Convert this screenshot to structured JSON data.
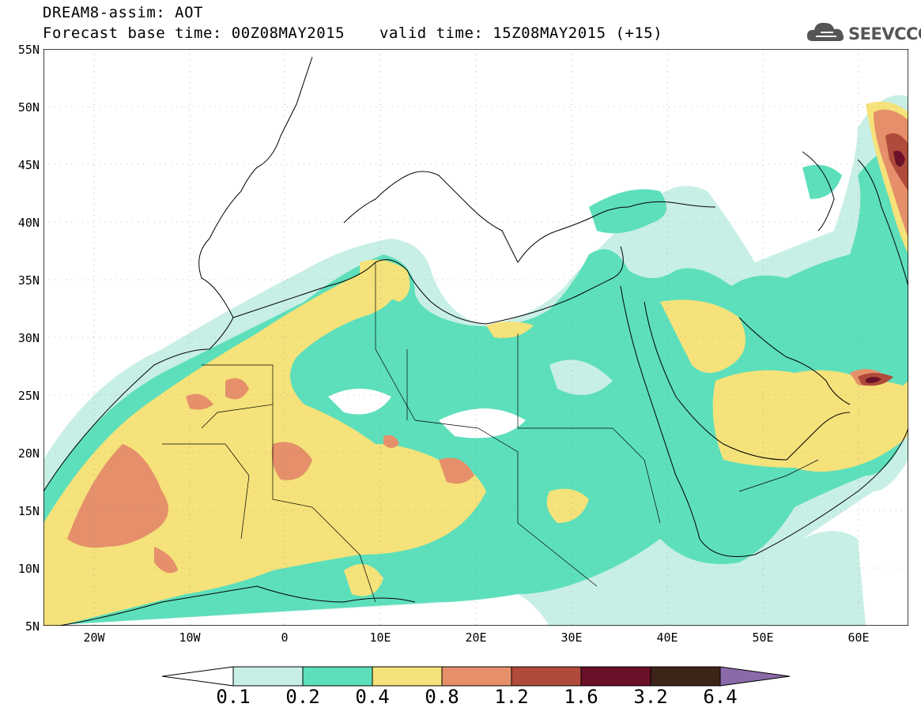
{
  "header": {
    "title": "DREAM8-assim: AOT",
    "base_time": "Forecast base time: 00Z08MAY2015",
    "valid_time": "valid time: 15Z08MAY2015 (+15)",
    "logo_text": "SEEVCCC"
  },
  "map": {
    "lat_labels": [
      "55N",
      "50N",
      "45N",
      "40N",
      "35N",
      "30N",
      "25N",
      "20N",
      "15N",
      "10N",
      "5N"
    ],
    "lon_labels": [
      "20W",
      "10W",
      "0",
      "10E",
      "20E",
      "30E",
      "40E",
      "50E",
      "60E"
    ]
  },
  "colorbar": {
    "labels": [
      "0.1",
      "0.2",
      "0.4",
      "0.8",
      "1.2",
      "1.6",
      "3.2",
      "6.4"
    ],
    "colors": [
      "#ffffff",
      "#c8efe6",
      "#5ddfbb",
      "#f5e27a",
      "#e5906a",
      "#b04a3a",
      "#6a1028",
      "#3d2418",
      "#8a6aa8"
    ]
  },
  "colors": {
    "level1": "#c8efe6",
    "level2": "#5ddfbb",
    "level3": "#f5e27a",
    "level4": "#e5906a",
    "level5": "#b04a3a",
    "level6": "#6a1028"
  }
}
